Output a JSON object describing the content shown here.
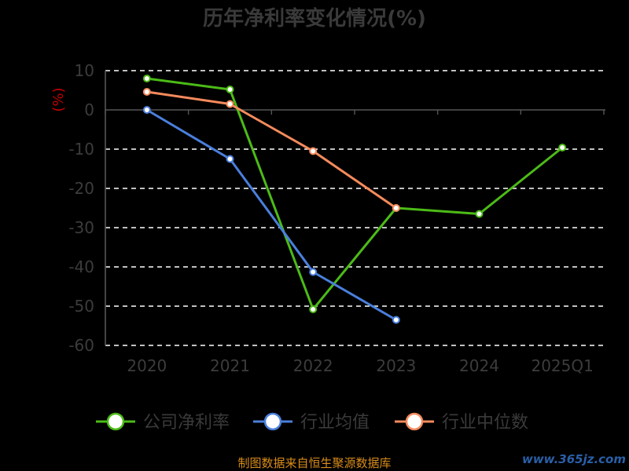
{
  "chart_data": {
    "type": "line",
    "title": "历年净利率变化情况(%)",
    "ylabel": "(%)",
    "categories": [
      "2020",
      "2021",
      "2022",
      "2023",
      "2024",
      "2025Q1"
    ],
    "ylim": [
      -60,
      10
    ],
    "yticks": [
      10,
      0,
      -10,
      -20,
      -30,
      -40,
      -50,
      -60
    ],
    "grid": true,
    "legend_position": "bottom",
    "series": [
      {
        "name": "公司净利率",
        "color": "#4cbb17",
        "values": [
          8.0,
          5.2,
          -50.8,
          -25.0,
          -26.5,
          -9.6
        ]
      },
      {
        "name": "行业均值",
        "color": "#4a7fdc",
        "values": [
          0.0,
          -12.5,
          -41.3,
          -53.5,
          null,
          null
        ]
      },
      {
        "name": "行业中位数",
        "color": "#f58a5c",
        "values": [
          4.6,
          1.5,
          -10.5,
          -25.0,
          null,
          null
        ]
      }
    ]
  },
  "footer": {
    "source": "制图数据来自恒生聚源数据库",
    "watermark": "www.365jz.com"
  },
  "colors": {
    "background": "#000000",
    "grid": "#ffffff",
    "axis": "#555555"
  }
}
